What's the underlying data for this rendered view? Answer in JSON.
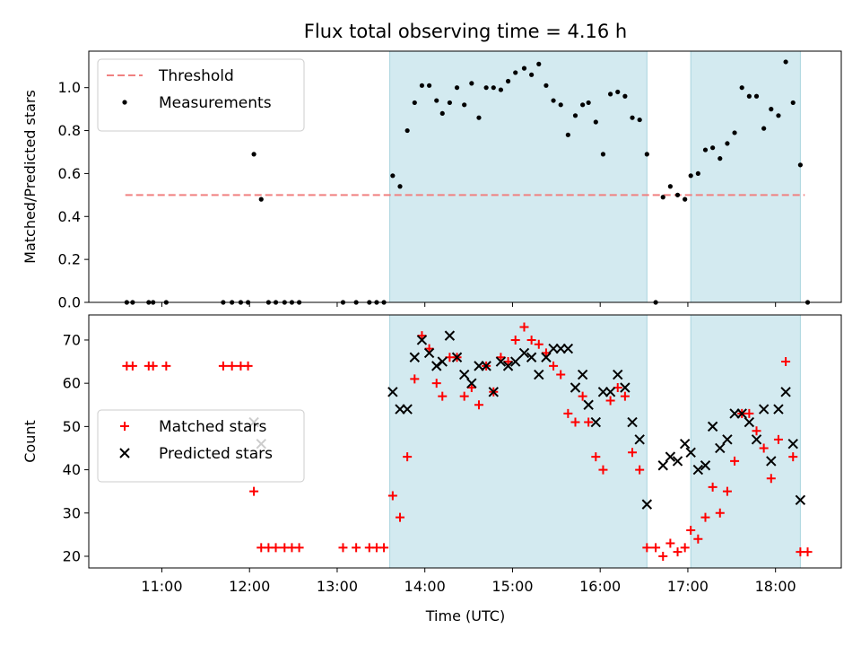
{
  "chart_data": {
    "title": "Flux total observing time = 4.16 h",
    "xlabel": "Time (UTC)",
    "x_ticks": [
      "11:00",
      "12:00",
      "13:00",
      "14:00",
      "15:00",
      "16:00",
      "17:00",
      "18:00"
    ],
    "x_range": [
      "10:10",
      "18:45"
    ],
    "shaded_intervals": [
      [
        "13:36",
        "16:32"
      ],
      [
        "17:02",
        "18:17"
      ]
    ],
    "shade_color": "#d3eaf0",
    "panels": [
      {
        "type": "scatter",
        "ylabel": "Matched/Predicted stars",
        "ylim": [
          0,
          1.17
        ],
        "yticks": [
          "0.0",
          "0.2",
          "0.4",
          "0.6",
          "0.8",
          "1.0"
        ],
        "legend_position": "upper-left",
        "threshold": {
          "name": "Threshold",
          "value": 0.5,
          "x_range": [
            "10:35",
            "18:20"
          ],
          "color": "#f08080",
          "style": "dashed"
        },
        "series": [
          {
            "name": "Measurements",
            "color": "#000000",
            "marker": "dot",
            "points": [
              [
                "10:36",
                0.0
              ],
              [
                "10:40",
                0.0
              ],
              [
                "10:51",
                0.0
              ],
              [
                "10:54",
                0.0
              ],
              [
                "11:03",
                0.0
              ],
              [
                "11:42",
                0.0
              ],
              [
                "11:48",
                0.0
              ],
              [
                "11:54",
                0.0
              ],
              [
                "11:59",
                0.0
              ],
              [
                "12:03",
                0.69
              ],
              [
                "12:08",
                0.48
              ],
              [
                "12:13",
                0.0
              ],
              [
                "12:18",
                0.0
              ],
              [
                "12:24",
                0.0
              ],
              [
                "12:29",
                0.0
              ],
              [
                "12:34",
                0.0
              ],
              [
                "13:04",
                0.0
              ],
              [
                "13:13",
                0.0
              ],
              [
                "13:22",
                0.0
              ],
              [
                "13:27",
                0.0
              ],
              [
                "13:32",
                0.0
              ],
              [
                "13:38",
                0.59
              ],
              [
                "13:43",
                0.54
              ],
              [
                "13:48",
                0.8
              ],
              [
                "13:53",
                0.93
              ],
              [
                "13:58",
                1.01
              ],
              [
                "14:03",
                1.01
              ],
              [
                "14:08",
                0.94
              ],
              [
                "14:12",
                0.88
              ],
              [
                "14:17",
                0.93
              ],
              [
                "14:22",
                1.0
              ],
              [
                "14:27",
                0.92
              ],
              [
                "14:32",
                1.02
              ],
              [
                "14:37",
                0.86
              ],
              [
                "14:42",
                1.0
              ],
              [
                "14:47",
                1.0
              ],
              [
                "14:52",
                0.99
              ],
              [
                "14:57",
                1.03
              ],
              [
                "15:02",
                1.07
              ],
              [
                "15:08",
                1.09
              ],
              [
                "15:13",
                1.06
              ],
              [
                "15:18",
                1.11
              ],
              [
                "15:23",
                1.01
              ],
              [
                "15:28",
                0.94
              ],
              [
                "15:33",
                0.92
              ],
              [
                "15:38",
                0.78
              ],
              [
                "15:43",
                0.87
              ],
              [
                "15:48",
                0.92
              ],
              [
                "15:52",
                0.93
              ],
              [
                "15:57",
                0.84
              ],
              [
                "16:02",
                0.69
              ],
              [
                "16:07",
                0.97
              ],
              [
                "16:12",
                0.98
              ],
              [
                "16:17",
                0.96
              ],
              [
                "16:22",
                0.86
              ],
              [
                "16:27",
                0.85
              ],
              [
                "16:32",
                0.69
              ],
              [
                "16:38",
                0.0
              ],
              [
                "16:43",
                0.49
              ],
              [
                "16:48",
                0.54
              ],
              [
                "16:53",
                0.5
              ],
              [
                "16:58",
                0.48
              ],
              [
                "17:02",
                0.59
              ],
              [
                "17:07",
                0.6
              ],
              [
                "17:12",
                0.71
              ],
              [
                "17:17",
                0.72
              ],
              [
                "17:22",
                0.67
              ],
              [
                "17:27",
                0.74
              ],
              [
                "17:32",
                0.79
              ],
              [
                "17:37",
                1.0
              ],
              [
                "17:42",
                0.96
              ],
              [
                "17:47",
                0.96
              ],
              [
                "17:52",
                0.81
              ],
              [
                "17:57",
                0.9
              ],
              [
                "18:02",
                0.87
              ],
              [
                "18:07",
                1.12
              ],
              [
                "18:12",
                0.93
              ],
              [
                "18:17",
                0.64
              ],
              [
                "18:22",
                0.0
              ]
            ]
          }
        ]
      },
      {
        "type": "scatter",
        "ylabel": "Count",
        "ylim": [
          17.3,
          75.8
        ],
        "yticks": [
          "20",
          "30",
          "40",
          "50",
          "60",
          "70"
        ],
        "legend_position": "center-left",
        "series": [
          {
            "name": "Matched stars",
            "color": "#ff0000",
            "marker": "plus",
            "points": [
              [
                "10:36",
                64
              ],
              [
                "10:40",
                64
              ],
              [
                "10:51",
                64
              ],
              [
                "10:54",
                64
              ],
              [
                "11:03",
                64
              ],
              [
                "11:42",
                64
              ],
              [
                "11:48",
                64
              ],
              [
                "11:54",
                64
              ],
              [
                "11:59",
                64
              ],
              [
                "12:03",
                35
              ],
              [
                "12:08",
                22
              ],
              [
                "12:13",
                22
              ],
              [
                "12:18",
                22
              ],
              [
                "12:24",
                22
              ],
              [
                "12:29",
                22
              ],
              [
                "12:34",
                22
              ],
              [
                "13:04",
                22
              ],
              [
                "13:13",
                22
              ],
              [
                "13:22",
                22
              ],
              [
                "13:27",
                22
              ],
              [
                "13:32",
                22
              ],
              [
                "13:38",
                34
              ],
              [
                "13:43",
                29
              ],
              [
                "13:48",
                43
              ],
              [
                "13:53",
                61
              ],
              [
                "13:58",
                71
              ],
              [
                "14:03",
                68
              ],
              [
                "14:08",
                60
              ],
              [
                "14:12",
                57
              ],
              [
                "14:17",
                66
              ],
              [
                "14:22",
                66
              ],
              [
                "14:27",
                57
              ],
              [
                "14:32",
                59
              ],
              [
                "14:37",
                55
              ],
              [
                "14:42",
                64
              ],
              [
                "14:47",
                58
              ],
              [
                "14:52",
                66
              ],
              [
                "14:57",
                65
              ],
              [
                "15:02",
                70
              ],
              [
                "15:08",
                73
              ],
              [
                "15:13",
                70
              ],
              [
                "15:18",
                69
              ],
              [
                "15:23",
                67
              ],
              [
                "15:28",
                64
              ],
              [
                "15:33",
                62
              ],
              [
                "15:38",
                53
              ],
              [
                "15:43",
                51
              ],
              [
                "15:48",
                57
              ],
              [
                "15:52",
                51
              ],
              [
                "15:57",
                43
              ],
              [
                "16:02",
                40
              ],
              [
                "16:07",
                56
              ],
              [
                "16:12",
                59
              ],
              [
                "16:17",
                57
              ],
              [
                "16:22",
                44
              ],
              [
                "16:27",
                40
              ],
              [
                "16:32",
                22
              ],
              [
                "16:38",
                22
              ],
              [
                "16:43",
                20
              ],
              [
                "16:48",
                23
              ],
              [
                "16:53",
                21
              ],
              [
                "16:58",
                22
              ],
              [
                "17:02",
                26
              ],
              [
                "17:07",
                24
              ],
              [
                "17:12",
                29
              ],
              [
                "17:17",
                36
              ],
              [
                "17:22",
                30
              ],
              [
                "17:27",
                35
              ],
              [
                "17:32",
                42
              ],
              [
                "17:37",
                53
              ],
              [
                "17:42",
                53
              ],
              [
                "17:47",
                49
              ],
              [
                "17:52",
                45
              ],
              [
                "17:57",
                38
              ],
              [
                "18:02",
                47
              ],
              [
                "18:07",
                65
              ],
              [
                "18:12",
                43
              ],
              [
                "18:17",
                21
              ],
              [
                "18:22",
                21
              ]
            ]
          },
          {
            "name": "Predicted stars",
            "color": "#000000",
            "marker": "x",
            "points": [
              [
                "12:03",
                51
              ],
              [
                "12:08",
                46
              ],
              [
                "13:38",
                58
              ],
              [
                "13:43",
                54
              ],
              [
                "13:48",
                54
              ],
              [
                "13:53",
                66
              ],
              [
                "13:58",
                70
              ],
              [
                "14:03",
                67
              ],
              [
                "14:08",
                64
              ],
              [
                "14:12",
                65
              ],
              [
                "14:17",
                71
              ],
              [
                "14:22",
                66
              ],
              [
                "14:27",
                62
              ],
              [
                "14:32",
                60
              ],
              [
                "14:37",
                64
              ],
              [
                "14:42",
                64
              ],
              [
                "14:47",
                58
              ],
              [
                "14:52",
                65
              ],
              [
                "14:57",
                64
              ],
              [
                "15:02",
                65
              ],
              [
                "15:08",
                67
              ],
              [
                "15:13",
                66
              ],
              [
                "15:18",
                62
              ],
              [
                "15:23",
                66
              ],
              [
                "15:28",
                68
              ],
              [
                "15:33",
                68
              ],
              [
                "15:38",
                68
              ],
              [
                "15:43",
                59
              ],
              [
                "15:48",
                62
              ],
              [
                "15:52",
                55
              ],
              [
                "15:57",
                51
              ],
              [
                "16:02",
                58
              ],
              [
                "16:07",
                58
              ],
              [
                "16:12",
                62
              ],
              [
                "16:17",
                59
              ],
              [
                "16:22",
                51
              ],
              [
                "16:27",
                47
              ],
              [
                "16:32",
                32
              ],
              [
                "16:43",
                41
              ],
              [
                "16:48",
                43
              ],
              [
                "16:53",
                42
              ],
              [
                "16:58",
                46
              ],
              [
                "17:02",
                44
              ],
              [
                "17:07",
                40
              ],
              [
                "17:12",
                41
              ],
              [
                "17:17",
                50
              ],
              [
                "17:22",
                45
              ],
              [
                "17:27",
                47
              ],
              [
                "17:32",
                53
              ],
              [
                "17:37",
                53
              ],
              [
                "17:42",
                51
              ],
              [
                "17:47",
                47
              ],
              [
                "17:52",
                54
              ],
              [
                "17:57",
                42
              ],
              [
                "18:02",
                54
              ],
              [
                "18:07",
                58
              ],
              [
                "18:12",
                46
              ],
              [
                "18:17",
                33
              ]
            ]
          }
        ]
      }
    ]
  }
}
